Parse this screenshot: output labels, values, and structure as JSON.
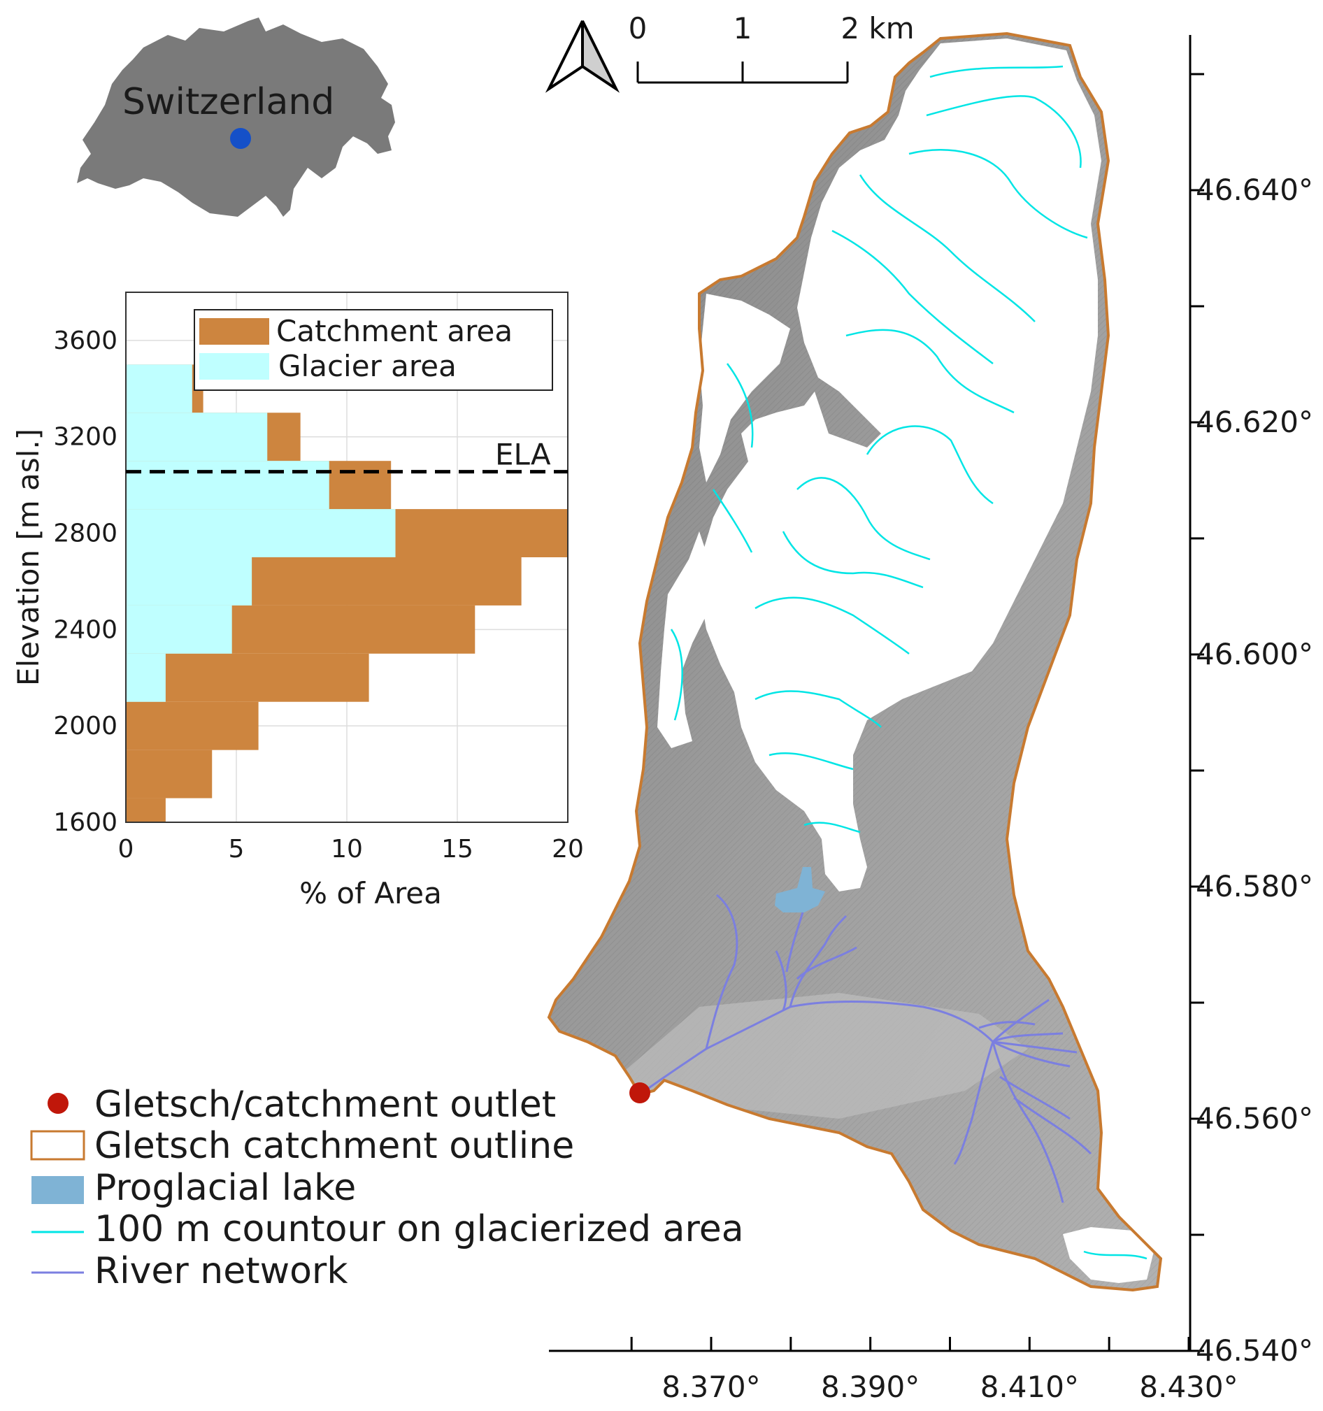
{
  "inset": {
    "country_label": "Switzerland",
    "country_color": "#7a7a7a",
    "marker_color": "#1550c8"
  },
  "scale_bar": {
    "ticks": [
      "0",
      "1",
      "2 km"
    ]
  },
  "north_arrow_icon": "north-arrow-icon",
  "chart_data": {
    "type": "bar",
    "orientation": "horizontal-step-histogram",
    "ylabel": "Elevation [m asl.]",
    "xlabel": "% of Area",
    "xlim": [
      0,
      20
    ],
    "ylim": [
      1600,
      3800
    ],
    "xticks": [
      "0",
      "5",
      "10",
      "15",
      "20"
    ],
    "yticks": [
      "1600",
      "2000",
      "2400",
      "2800",
      "3200",
      "3600"
    ],
    "grid": true,
    "legend_position": "top-right",
    "bin_edges_m": [
      1600,
      1700,
      1900,
      2100,
      2300,
      2500,
      2700,
      2900,
      3100,
      3300,
      3500
    ],
    "series": [
      {
        "name": "Catchment area",
        "color": "#cd853f",
        "values": [
          1.8,
          3.9,
          6.0,
          11.0,
          15.8,
          17.9,
          20.0,
          12.0,
          7.9,
          3.5
        ]
      },
      {
        "name": "Glacier area",
        "color": "#bfffff",
        "values": [
          0,
          0,
          0,
          1.8,
          4.8,
          5.7,
          12.2,
          9.2,
          6.4,
          3.0
        ]
      }
    ],
    "reference_line": {
      "label": "ELA",
      "elevation_m": 3055
    }
  },
  "map": {
    "lat_ticks": [
      "46.540°",
      "46.560°",
      "46.580°",
      "46.600°",
      "46.620°",
      "46.640°"
    ],
    "lon_ticks": [
      "8.370°",
      "8.390°",
      "8.410°",
      "8.430°"
    ],
    "outline_color": "#c87a30",
    "contour_color": "#00e5e5",
    "river_color": "#7b7fe0",
    "lake_color": "#7fb3d5",
    "outlet_color": "#c0170a"
  },
  "legend": {
    "items": [
      {
        "label": "Gletsch/catchment outlet"
      },
      {
        "label": "Gletsch catchment outline"
      },
      {
        "label": "Proglacial lake"
      },
      {
        "label": "100 m countour on glacierized area"
      },
      {
        "label": "River network"
      }
    ]
  }
}
